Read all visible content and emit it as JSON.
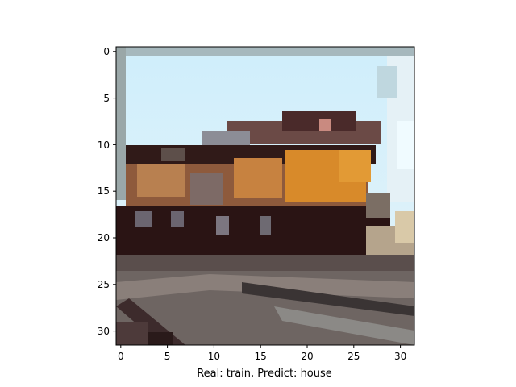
{
  "figure": {
    "xlabel": "Real: train, Predict: house",
    "x_ticks": [
      "0",
      "5",
      "10",
      "15",
      "20",
      "25",
      "30"
    ],
    "y_ticks": [
      "0",
      "5",
      "10",
      "15",
      "20",
      "25",
      "30"
    ],
    "image_size": 32,
    "image_description": "pixelated low-resolution photo of a train locomotive on tracks"
  },
  "chart_data": {
    "type": "heatmap",
    "xlim": [
      -0.5,
      31.5
    ],
    "ylim": [
      31.5,
      -0.5
    ],
    "x_ticks": [
      0,
      5,
      10,
      15,
      20,
      25,
      30
    ],
    "y_ticks": [
      0,
      5,
      10,
      15,
      20,
      25,
      30
    ],
    "xlabel": "Real: train, Predict: house",
    "grid": false
  }
}
